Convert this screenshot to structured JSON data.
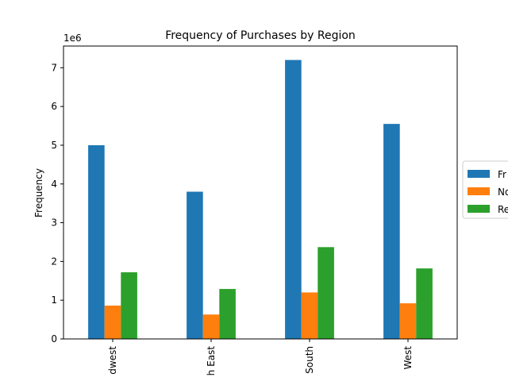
{
  "chart_data": {
    "type": "bar",
    "title": "Frequency of Purchases by Region",
    "xlabel": "",
    "ylabel": "Frequency",
    "y_offset_text": "1e6",
    "ylim": [
      0,
      7560000
    ],
    "yticks": [
      0,
      1000000,
      2000000,
      3000000,
      4000000,
      5000000,
      6000000,
      7000000
    ],
    "ytick_labels": [
      "0",
      "1",
      "2",
      "3",
      "4",
      "5",
      "6",
      "7"
    ],
    "categories": [
      "dwest",
      "h East",
      "South",
      "West"
    ],
    "series": [
      {
        "name": "Fr",
        "color": "#1f77b4",
        "values": [
          5000000,
          3800000,
          7200000,
          5550000
        ]
      },
      {
        "name": "No",
        "color": "#ff7f0e",
        "values": [
          860000,
          630000,
          1200000,
          920000
        ]
      },
      {
        "name": "Re",
        "color": "#2ca02c",
        "values": [
          1720000,
          1290000,
          2370000,
          1820000
        ]
      }
    ],
    "legend_position": "right",
    "grid": false
  }
}
